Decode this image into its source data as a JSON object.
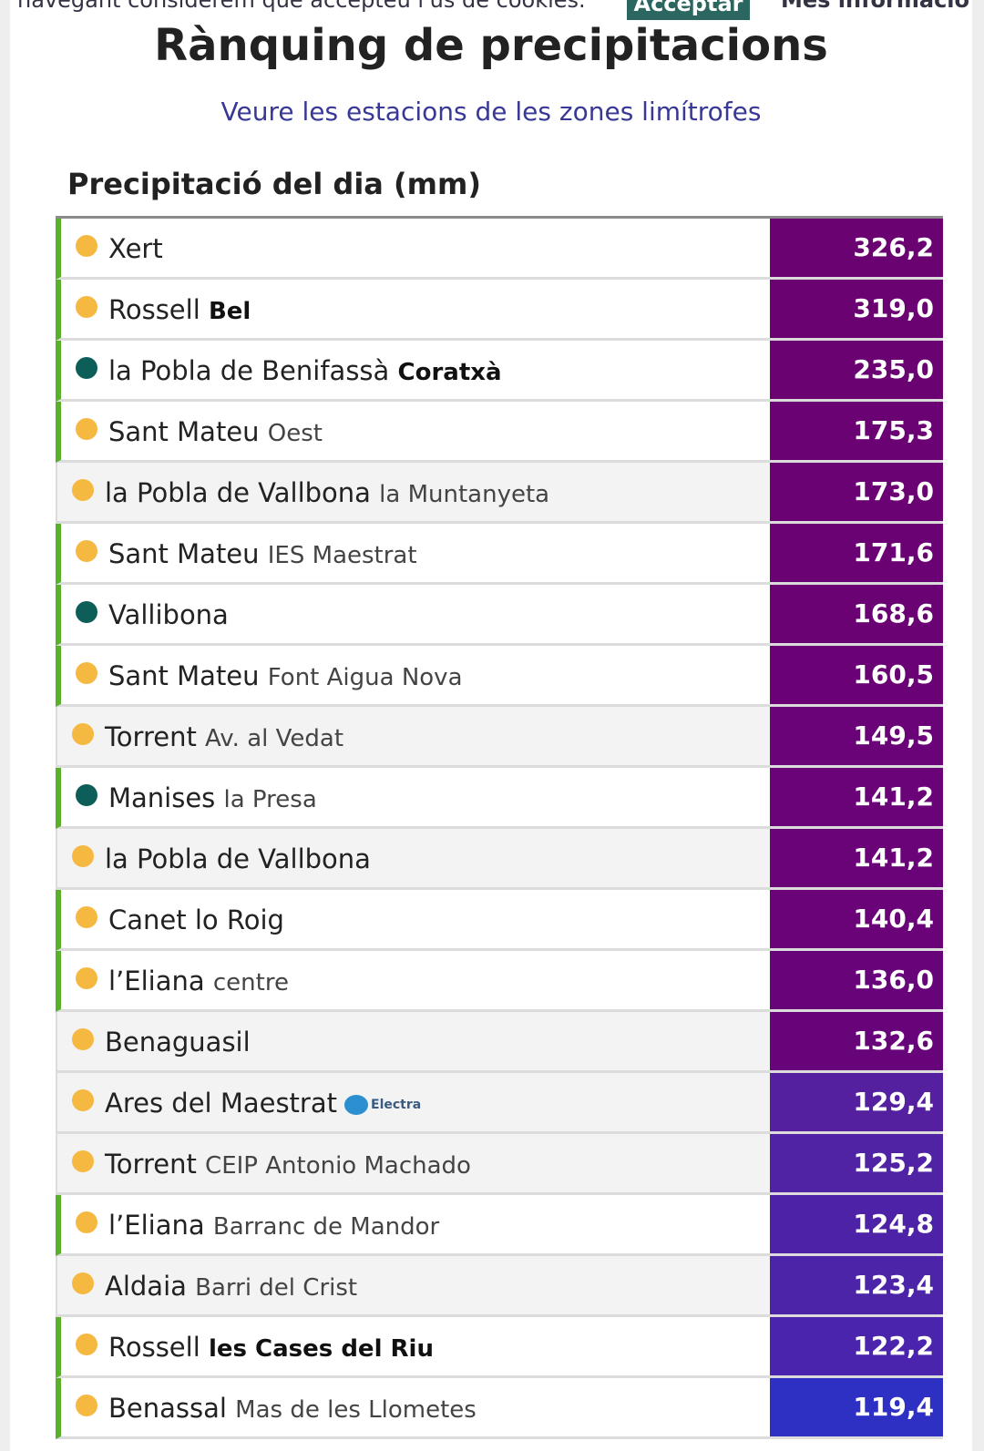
{
  "cookie_bar": {
    "text": "navegant considerem que accepteu l'ús de cookies.",
    "accept": "Acceptar",
    "more": "Més informació"
  },
  "header": {
    "title": "Rànquing de precipitacions",
    "link": "Veure les estacions de les zones limítrofes"
  },
  "section": {
    "title": "Precipitació del dia (mm)"
  },
  "dot_colors": {
    "yellow": "#f5b942",
    "teal": "#0d5e59"
  },
  "table": {
    "rows": [
      {
        "name": "Xert",
        "value": "326,2",
        "dot": "yellow",
        "marked": true,
        "cell_color": "#6a0272"
      },
      {
        "name": "Rossell",
        "sub": "Bel",
        "sub_bold": true,
        "value": "319,0",
        "dot": "yellow",
        "marked": true,
        "cell_color": "#6a0272"
      },
      {
        "name": "la Pobla de Benifassà",
        "sub": "Coratxà",
        "sub_bold": true,
        "value": "235,0",
        "dot": "teal",
        "marked": true,
        "cell_color": "#6a0272"
      },
      {
        "name": "Sant Mateu",
        "sub": "Oest",
        "value": "175,3",
        "dot": "yellow",
        "marked": true,
        "cell_color": "#6a0274"
      },
      {
        "name": "la Pobla de Vallbona",
        "sub": "la Muntanyeta",
        "value": "173,0",
        "dot": "yellow",
        "marked": false,
        "cell_color": "#6a0274"
      },
      {
        "name": "Sant Mateu",
        "sub": "IES Maestrat",
        "value": "171,6",
        "dot": "yellow",
        "marked": true,
        "cell_color": "#6a0274"
      },
      {
        "name": "Vallibona",
        "value": "168,6",
        "dot": "teal",
        "marked": true,
        "cell_color": "#6a0274"
      },
      {
        "name": "Sant Mateu",
        "sub": "Font Aigua Nova",
        "value": "160,5",
        "dot": "yellow",
        "marked": true,
        "cell_color": "#6a0276"
      },
      {
        "name": "Torrent",
        "sub": "Av. al Vedat",
        "value": "149,5",
        "dot": "yellow",
        "marked": false,
        "cell_color": "#6a0278"
      },
      {
        "name": "Manises",
        "sub": "la Presa",
        "value": "141,2",
        "dot": "teal",
        "marked": true,
        "cell_color": "#6a0278"
      },
      {
        "name": "la Pobla de Vallbona",
        "value": "141,2",
        "dot": "yellow",
        "marked": false,
        "cell_color": "#6a0278"
      },
      {
        "name": "Canet lo Roig",
        "value": "140,4",
        "dot": "yellow",
        "marked": true,
        "cell_color": "#6a0278"
      },
      {
        "name": "l’Eliana",
        "sub": "centre",
        "value": "136,0",
        "dot": "yellow",
        "marked": true,
        "cell_color": "#68047a"
      },
      {
        "name": "Benaguasil",
        "value": "132,6",
        "dot": "yellow",
        "marked": false,
        "cell_color": "#68047a"
      },
      {
        "name": "Ares del Maestrat",
        "logo": "Electra",
        "value": "129,4",
        "dot": "yellow",
        "marked": false,
        "cell_color": "#5420a0"
      },
      {
        "name": "Torrent",
        "sub": "CEIP Antonio Machado",
        "value": "125,2",
        "dot": "yellow",
        "marked": false,
        "cell_color": "#5022a4"
      },
      {
        "name": "l’Eliana",
        "sub": "Barranc de Mandor",
        "value": "124,8",
        "dot": "yellow",
        "marked": true,
        "cell_color": "#4e22a6"
      },
      {
        "name": "Aldaia",
        "sub": "Barri del Crist",
        "value": "123,4",
        "dot": "yellow",
        "marked": false,
        "cell_color": "#4c24a8"
      },
      {
        "name": "Rossell",
        "sub": "les Cases del Riu",
        "sub_bold": true,
        "value": "122,2",
        "dot": "yellow",
        "marked": true,
        "cell_color": "#4a24ac"
      },
      {
        "name": "Benassal",
        "sub": "Mas de les Llometes",
        "value": "119,4",
        "dot": "yellow",
        "marked": true,
        "cell_color": "#2e30c4"
      }
    ]
  }
}
